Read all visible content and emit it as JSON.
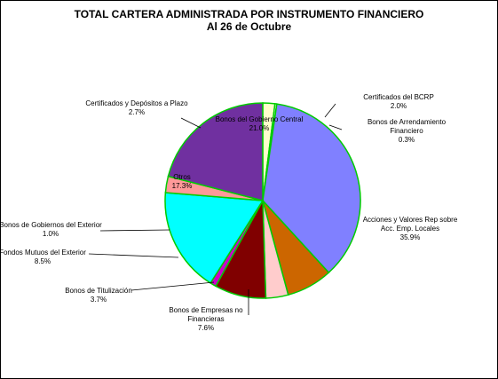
{
  "chart_data": {
    "type": "pie",
    "title": "TOTAL CARTERA ADMINISTRADA POR INSTRUMENTO FINANCIERO",
    "subtitle": "Al 26 de Octubre",
    "slices": [
      {
        "name": "Certificados del BCRP",
        "value": 2.0,
        "label_lines": [
          "Certificados del BCRP",
          "2.0%"
        ],
        "color": "#ffffcc"
      },
      {
        "name": "Bonos de Arrendamiento Financiero",
        "value": 0.3,
        "label_lines": [
          "Bonos de Arrendamiento",
          "Financiero",
          "0.3%"
        ],
        "color": "#ffffff"
      },
      {
        "name": "Acciones y Valores Rep sobre Acc. Emp. Locales",
        "value": 35.9,
        "label_lines": [
          "Acciones y Valores Rep sobre",
          "Acc. Emp. Locales",
          "35.9%"
        ],
        "color": "#8080ff"
      },
      {
        "name": "Bonos de Empresas no Financieras",
        "value": 7.6,
        "label_lines": [
          "Bonos de Empresas no",
          "Financieras",
          "7.6%"
        ],
        "color": "#cc6600"
      },
      {
        "name": "Bonos de Titulización",
        "value": 3.7,
        "label_lines": [
          "Bonos de Titulización",
          "3.7%"
        ],
        "color": "#ffcccc"
      },
      {
        "name": "Fondos Mutuos del Exterior",
        "value": 8.5,
        "label_lines": [
          "Fondos Mutuos del Exterior",
          "8.5%"
        ],
        "color": "#800000"
      },
      {
        "name": "Bonos de Gobiernos del Exterior",
        "value": 1.0,
        "label_lines": [
          "Bonos de Gobiernos del Exterior",
          "1.0%"
        ],
        "color": "#cc00cc"
      },
      {
        "name": "Otros",
        "value": 17.3,
        "label_lines": [
          "Otros",
          "17.3%"
        ],
        "color": "#00ffff"
      },
      {
        "name": "Certificados y Depósitos a Plazo",
        "value": 2.7,
        "label_lines": [
          "Certificados  y Depósitos a Plazo",
          "2.7%"
        ],
        "color": "#ff9999"
      },
      {
        "name": "Bonos del Gobierno Central",
        "value": 21.0,
        "label_lines": [
          "Bonos del Gobierno Central",
          "21.0%"
        ],
        "color": "#7030a0"
      }
    ],
    "slice_border_color": "#00cc00",
    "start_angle_deg": 0,
    "direction": "clockwise"
  }
}
